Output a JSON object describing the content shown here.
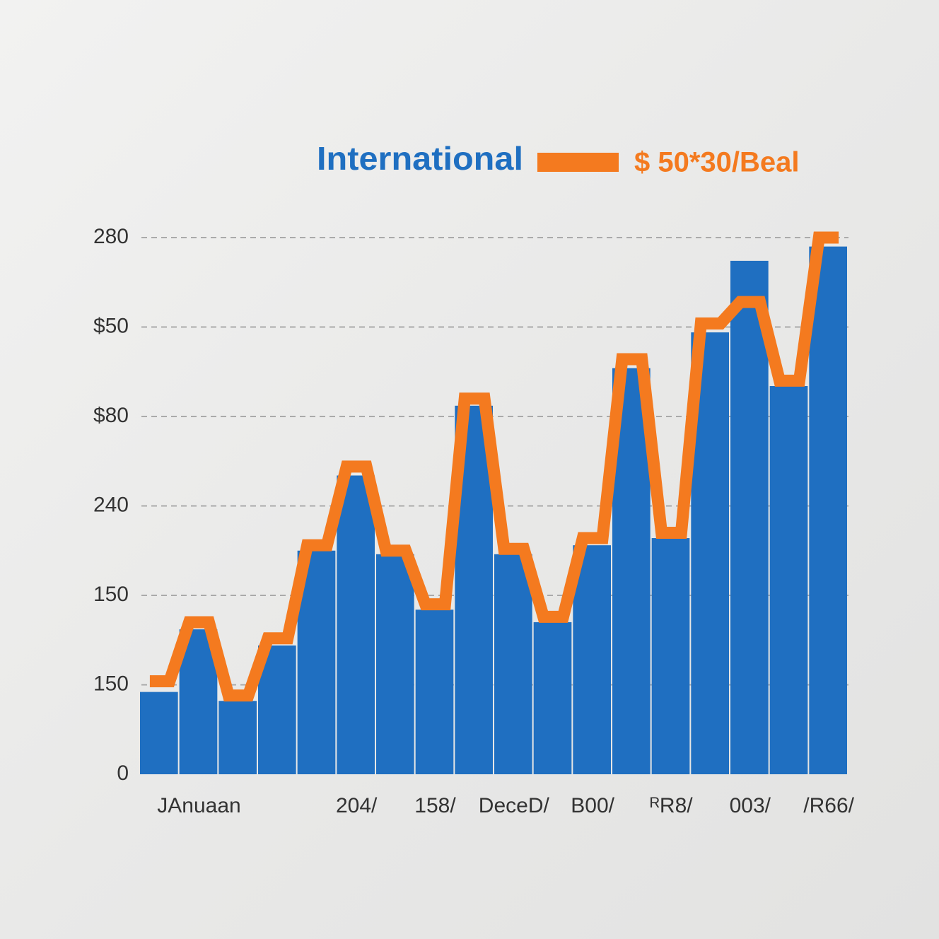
{
  "chart_data": {
    "type": "bar_line",
    "categories": [
      null,
      "JAnuaan",
      null,
      null,
      null,
      "204/",
      null,
      "158/",
      null,
      "DeceD/",
      null,
      "B00/",
      null,
      "ᴿR8/",
      null,
      "003/",
      null,
      "/R66/"
    ],
    "series": [
      {
        "name": "International",
        "color": "#1f6fc1",
        "kind": "bar",
        "values": [
          46,
          81,
          41,
          72,
          125,
          167,
          123,
          92,
          206,
          123,
          85,
          128,
          227,
          132,
          247,
          287,
          217,
          295
        ]
      },
      {
        "name": "$ 50*30/Beal",
        "color": "#f47a1f",
        "kind": "line",
        "values": [
          52,
          85,
          44,
          76,
          128,
          172,
          125,
          95,
          210,
          126,
          88,
          132,
          232,
          135,
          252,
          264,
          220,
          300
        ]
      }
    ],
    "ylim": [
      0,
      300
    ],
    "yticks": [
      0,
      {
        "value": 50,
        "label": "150"
      },
      {
        "value": 100,
        "label": "150"
      },
      {
        "value": 150,
        "label": "240"
      },
      {
        "value": 200,
        "label": "$80"
      },
      {
        "value": 250,
        "label": "$50"
      },
      {
        "value": 300,
        "label": "280"
      }
    ],
    "grid": true
  }
}
